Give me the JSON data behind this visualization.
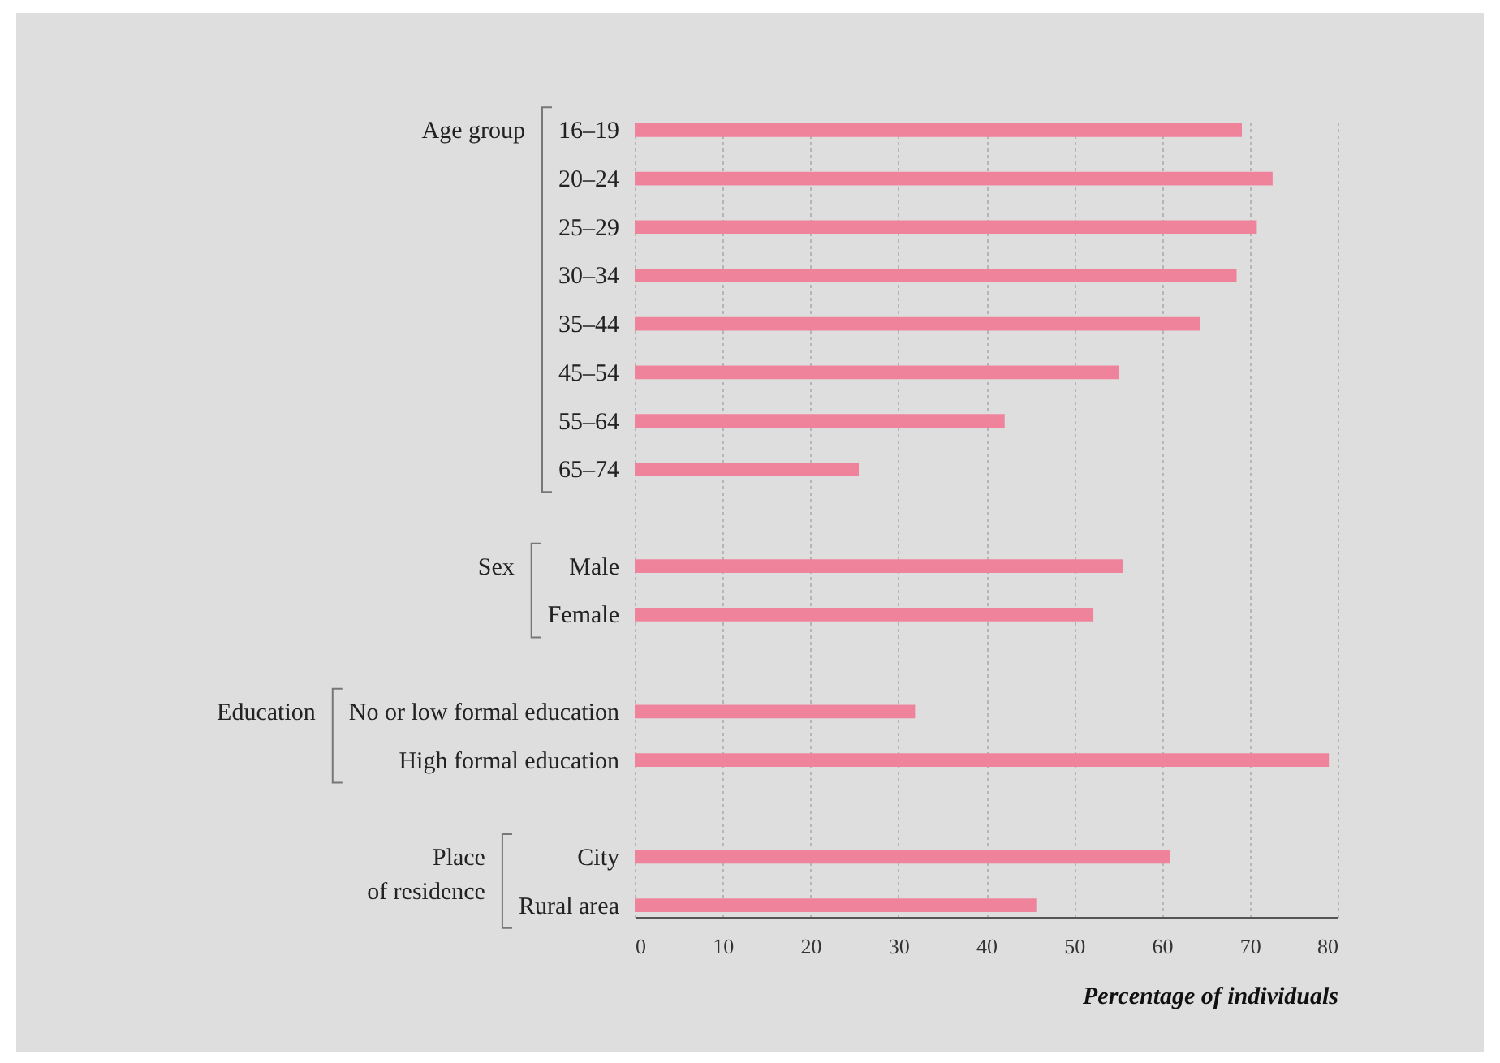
{
  "chart_data": {
    "type": "bar",
    "orientation": "horizontal",
    "xlabel": "Percentage of individuals",
    "categories": [
      "16–19",
      "20–24",
      "25–29",
      "30–34",
      "35–44",
      "45–54",
      "55–64",
      "65–74",
      "Male",
      "Female",
      "No or low formal education",
      "High formal education",
      "City",
      "Rural area"
    ],
    "values": [
      69.1,
      72.6,
      70.8,
      68.5,
      64.3,
      55.1,
      42.1,
      25.5,
      55.6,
      52.2,
      31.9,
      79.0,
      60.9,
      45.7
    ],
    "color": "#f0839c",
    "xlim": [
      0,
      80
    ],
    "xticks": [
      0,
      10,
      20,
      30,
      40,
      50,
      60,
      70,
      80
    ],
    "grid": "x",
    "annotations": [
      "Age group",
      "Sex",
      "Education",
      "Place of residence"
    ]
  }
}
